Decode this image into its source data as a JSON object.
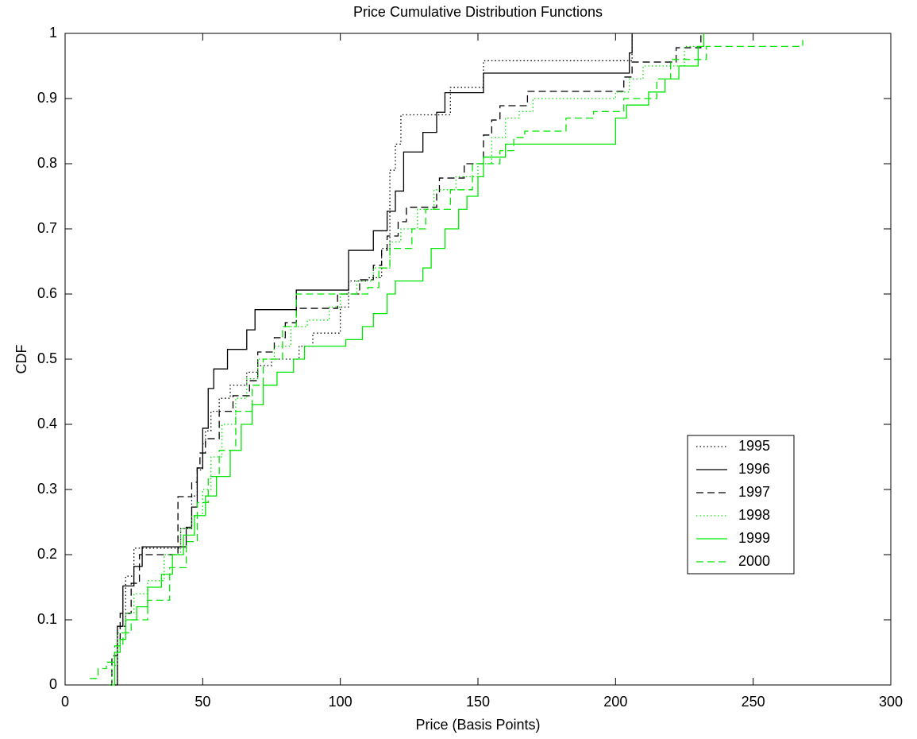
{
  "chart_data": {
    "type": "step",
    "title": "Price Cumulative Distribution Functions",
    "x_label": "Price (Basis Points)",
    "y_label": "CDF",
    "xlim": [
      0,
      300
    ],
    "ylim": [
      0,
      1
    ],
    "xticks": [
      0,
      50,
      100,
      150,
      200,
      250,
      300
    ],
    "yticks": [
      0,
      0.1,
      0.2,
      0.3,
      0.4,
      0.5,
      0.6,
      0.7,
      0.8,
      0.9,
      1
    ],
    "grid": false,
    "legend": "lower right",
    "series": [
      {
        "name": "1995",
        "color": "#000000",
        "style": "dotted",
        "x": [
          18,
          19,
          22,
          25,
          36,
          42,
          46,
          48,
          50,
          51,
          53,
          56,
          60,
          66,
          70,
          75,
          80,
          85,
          90,
          100,
          103,
          110,
          115,
          118,
          120,
          122,
          138,
          140,
          152,
          205,
          206
        ],
        "values": [
          0,
          0.09,
          0.167,
          0.21,
          0.21,
          0.24,
          0.29,
          0.33,
          0.37,
          0.39,
          0.42,
          0.44,
          0.46,
          0.48,
          0.49,
          0.5,
          0.5,
          0.52,
          0.54,
          0.58,
          0.62,
          0.625,
          0.67,
          0.79,
          0.83,
          0.875,
          0.875,
          0.917,
          0.958,
          0.958,
          1.0
        ]
      },
      {
        "name": "1996",
        "color": "#000000",
        "style": "solid",
        "x": [
          18,
          19,
          21,
          25,
          28,
          40,
          44,
          46,
          48,
          50,
          52,
          54,
          59,
          66,
          69,
          84,
          101,
          103,
          112,
          117,
          120,
          123,
          130,
          135,
          138,
          152,
          204,
          205,
          206
        ],
        "values": [
          0,
          0.09,
          0.152,
          0.182,
          0.212,
          0.212,
          0.242,
          0.273,
          0.333,
          0.394,
          0.455,
          0.485,
          0.515,
          0.545,
          0.576,
          0.606,
          0.606,
          0.667,
          0.697,
          0.727,
          0.758,
          0.818,
          0.848,
          0.879,
          0.909,
          0.939,
          0.939,
          0.97,
          1.0
        ]
      },
      {
        "name": "1997",
        "color": "#000000",
        "style": "dashed",
        "x": [
          16,
          17,
          19,
          20,
          24,
          27,
          40,
          41,
          46,
          48,
          49,
          51,
          56,
          61,
          67,
          70,
          76,
          80,
          84,
          96,
          99,
          107,
          112,
          115,
          117,
          121,
          124,
          135,
          136,
          145,
          152,
          155,
          158,
          168,
          200,
          203,
          206,
          220,
          222,
          231
        ],
        "values": [
          0,
          0.045,
          0.067,
          0.11,
          0.156,
          0.2,
          0.2,
          0.289,
          0.311,
          0.333,
          0.356,
          0.378,
          0.42,
          0.444,
          0.467,
          0.511,
          0.533,
          0.556,
          0.578,
          0.578,
          0.6,
          0.622,
          0.644,
          0.667,
          0.689,
          0.711,
          0.733,
          0.756,
          0.778,
          0.8,
          0.844,
          0.867,
          0.889,
          0.911,
          0.911,
          0.933,
          0.956,
          0.956,
          0.978,
          1.0
        ]
      },
      {
        "name": "1998",
        "color": "#00e600",
        "style": "dotted",
        "x": [
          16,
          17,
          19,
          22,
          25,
          30,
          36,
          42,
          46,
          50,
          53,
          57,
          62,
          66,
          70,
          76,
          82,
          88,
          96,
          100,
          106,
          112,
          118,
          122,
          128,
          134,
          142,
          150,
          155,
          160,
          165,
          170,
          200,
          205,
          210,
          225,
          232
        ],
        "values": [
          0,
          0.03,
          0.08,
          0.11,
          0.14,
          0.16,
          0.2,
          0.24,
          0.26,
          0.3,
          0.35,
          0.4,
          0.44,
          0.47,
          0.5,
          0.52,
          0.55,
          0.56,
          0.58,
          0.6,
          0.62,
          0.64,
          0.68,
          0.7,
          0.73,
          0.76,
          0.78,
          0.8,
          0.84,
          0.87,
          0.88,
          0.9,
          0.91,
          0.93,
          0.95,
          0.98,
          1.0
        ]
      },
      {
        "name": "1999",
        "color": "#00e600",
        "style": "solid",
        "x": [
          17,
          18,
          20,
          22,
          26,
          30,
          35,
          39,
          43,
          47,
          51,
          55,
          60,
          64,
          68,
          72,
          77,
          83,
          87,
          102,
          108,
          112,
          117,
          120,
          130,
          133,
          138,
          143,
          146,
          150,
          152,
          160,
          192,
          200,
          204,
          212,
          218,
          223,
          230,
          232
        ],
        "values": [
          0,
          0.05,
          0.07,
          0.1,
          0.12,
          0.15,
          0.17,
          0.2,
          0.23,
          0.26,
          0.29,
          0.32,
          0.36,
          0.4,
          0.43,
          0.46,
          0.48,
          0.5,
          0.52,
          0.53,
          0.55,
          0.57,
          0.6,
          0.62,
          0.64,
          0.67,
          0.7,
          0.73,
          0.75,
          0.78,
          0.81,
          0.83,
          0.83,
          0.87,
          0.89,
          0.91,
          0.93,
          0.95,
          0.98,
          1.0
        ]
      },
      {
        "name": "2000",
        "color": "#00e600",
        "style": "dashed",
        "x": [
          9,
          12,
          15,
          18,
          21,
          24,
          30,
          38,
          44,
          48,
          52,
          56,
          62,
          68,
          72,
          79,
          84,
          110,
          114,
          118,
          126,
          131,
          140,
          148,
          158,
          163,
          167,
          182,
          192,
          203,
          215,
          220,
          233,
          268
        ],
        "values": [
          0.01,
          0.025,
          0.035,
          0.06,
          0.08,
          0.1,
          0.13,
          0.18,
          0.22,
          0.28,
          0.32,
          0.36,
          0.42,
          0.46,
          0.5,
          0.55,
          0.6,
          0.61,
          0.64,
          0.67,
          0.7,
          0.73,
          0.76,
          0.8,
          0.82,
          0.84,
          0.85,
          0.87,
          0.88,
          0.9,
          0.93,
          0.96,
          0.98,
          0.99
        ]
      }
    ]
  }
}
